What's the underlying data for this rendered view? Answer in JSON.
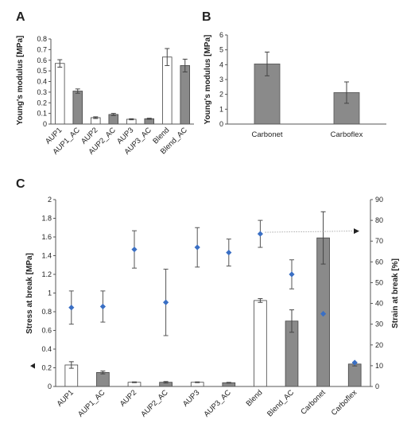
{
  "chart_data": [
    {
      "panel": "A",
      "type": "bar",
      "ylabel": "Young's modulus [MPa]",
      "ylim": [
        0,
        0.8
      ],
      "yticks": [
        0,
        0.1,
        0.2,
        0.3,
        0.4,
        0.5,
        0.6,
        0.7,
        0.8
      ],
      "ytick_labels": [
        "0",
        "0.1",
        "0.2",
        "0.3",
        "0.4",
        "0.5",
        "0.6",
        "0.7",
        "0.8"
      ],
      "categories": [
        "AUP1",
        "AUP1_AC",
        "AUP2",
        "AUP2_AC",
        "AUP3",
        "AUP3_AC",
        "Blend",
        "Blend_AC"
      ],
      "values": [
        0.57,
        0.31,
        0.06,
        0.09,
        0.045,
        0.05,
        0.63,
        0.55
      ],
      "errors": [
        0.035,
        0.02,
        0.008,
        0.01,
        0.005,
        0.005,
        0.08,
        0.06
      ],
      "fills": [
        "white",
        "gray",
        "white",
        "gray",
        "white",
        "gray",
        "white",
        "gray"
      ],
      "grid": false
    },
    {
      "panel": "B",
      "type": "bar",
      "ylabel": "Young's modulus [MPa]",
      "ylim": [
        0,
        6
      ],
      "yticks": [
        0,
        1,
        2,
        3,
        4,
        5,
        6
      ],
      "ytick_labels": [
        "0",
        "1",
        "2",
        "3",
        "4",
        "5",
        "6"
      ],
      "categories": [
        "Carbonet",
        "Carboflex"
      ],
      "values": [
        4.05,
        2.12
      ],
      "errors": [
        0.8,
        0.72
      ],
      "fills": [
        "gray",
        "gray"
      ],
      "grid": false
    },
    {
      "panel": "C",
      "type": "bar",
      "ylabel": "Stress at break [MPa]",
      "ylabel_right": "Strain at break [%]",
      "ylim": [
        0,
        2
      ],
      "ylim_right": [
        0,
        90
      ],
      "yticks": [
        0,
        0.2,
        0.4,
        0.6,
        0.8,
        1,
        1.2,
        1.4,
        1.6,
        1.8,
        2
      ],
      "ytick_labels": [
        "0",
        "0.2",
        "0.4",
        "0.6",
        "0.8",
        "1",
        "1.2",
        "1.4",
        "1.6",
        "1.8",
        "2"
      ],
      "yticks_right": [
        0,
        10,
        20,
        30,
        40,
        50,
        60,
        70,
        80,
        90
      ],
      "ytick_labels_right": [
        "0",
        "10",
        "20",
        "30",
        "40",
        "50",
        "60",
        "70",
        "80",
        "90"
      ],
      "categories": [
        "AUP1",
        "AUP1_AC",
        "AUP2",
        "AUP2_AC",
        "AUP3",
        "AUP3_AC",
        "Blend",
        "Blend_AC",
        "Carbonet",
        "Carboflex"
      ],
      "series": [
        {
          "kind": "bar",
          "values": [
            0.23,
            0.15,
            0.045,
            0.045,
            0.045,
            0.04,
            0.92,
            0.7,
            1.59,
            0.24
          ],
          "errors": [
            0.035,
            0.015,
            0.004,
            0.008,
            0.004,
            0.004,
            0.02,
            0.12,
            0.28,
            0.02
          ],
          "fills": [
            "white",
            "gray",
            "white",
            "gray",
            "white",
            "gray",
            "white",
            "gray",
            "gray",
            "gray"
          ]
        },
        {
          "kind": "scatter",
          "axis": "right",
          "values": [
            38,
            38.5,
            66,
            40.5,
            67,
            64.5,
            73.5,
            54,
            35,
            11.5
          ],
          "errors": [
            8,
            7.5,
            9,
            16,
            9.5,
            6.5,
            6.5,
            7,
            null,
            null
          ],
          "color": "#3a6fc4"
        }
      ],
      "grid": false
    }
  ]
}
